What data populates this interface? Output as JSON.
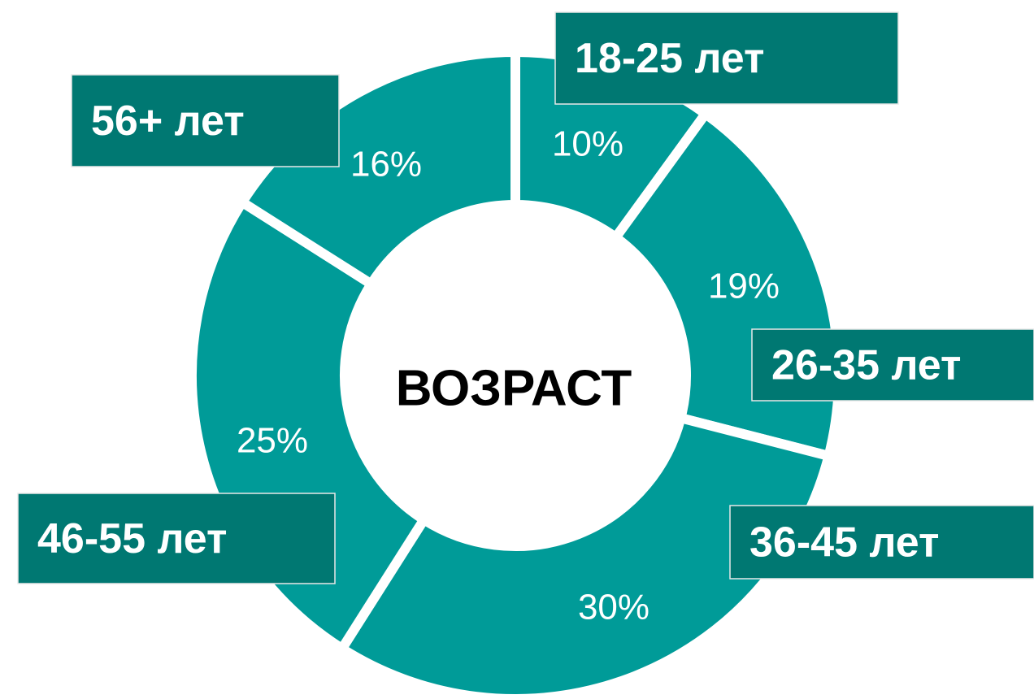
{
  "chart_data": {
    "type": "donut",
    "center_label": "ВОЗРАСТ",
    "categories": [
      "18-25 лет",
      "26-35 лет",
      "36-45 лет",
      "46-55 лет",
      "56+ лет"
    ],
    "values": [
      10,
      19,
      30,
      25,
      16
    ],
    "value_labels": [
      "10%",
      "19%",
      "30%",
      "25%",
      "16%"
    ],
    "color": "#009b98",
    "label_box_color": "#007872"
  }
}
